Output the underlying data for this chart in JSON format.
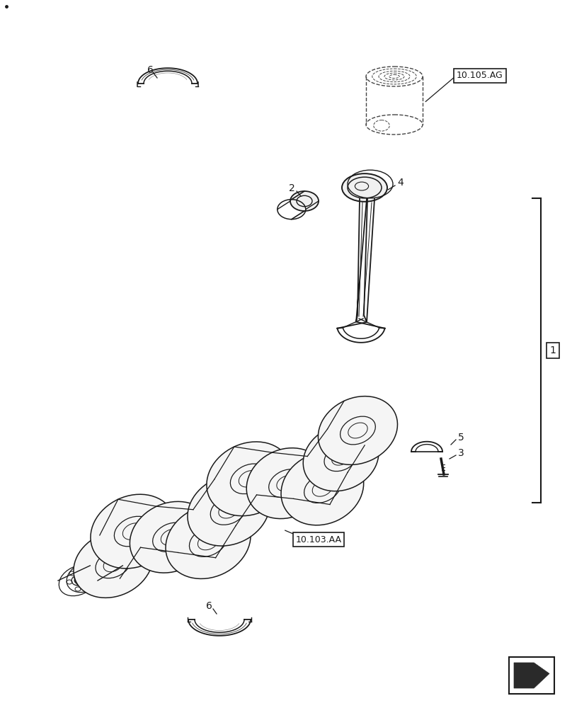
{
  "bg_color": "#ffffff",
  "label_10105AG": "10.105.AG",
  "label_10103AA": "10.103.AA",
  "label_1": "1",
  "label_2": "2",
  "label_3": "3",
  "label_4": "4",
  "label_5": "5",
  "label_6": "6",
  "line_color": "#1a1a1a",
  "dash_color": "#444444",
  "fill_dark": "#2a2a2a",
  "dot_color": "#111111"
}
